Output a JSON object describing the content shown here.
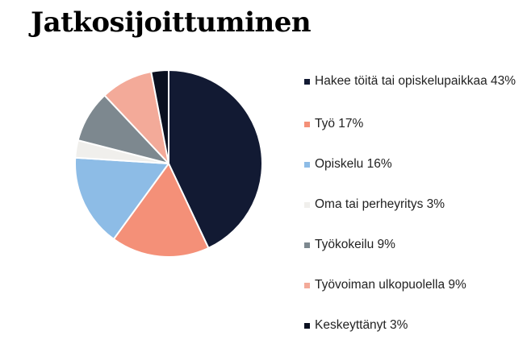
{
  "title": "Jatkosijoittuminen",
  "chart_data": {
    "type": "pie",
    "title": "Jatkosijoittuminen",
    "legend_position": "right",
    "slices": [
      {
        "label": "Hakee töitä tai opiskelupaikkaa",
        "legend_text": "Hakee töitä tai opiskelupaikkaa 43%",
        "value": 43,
        "color": "#121a33"
      },
      {
        "label": "Työ",
        "legend_text": "Työ 17%",
        "value": 17,
        "color": "#f49078"
      },
      {
        "label": "Opiskelu",
        "legend_text": "Opiskelu 16%",
        "value": 16,
        "color": "#8dbce6"
      },
      {
        "label": "Oma tai perheyritys",
        "legend_text": "Oma tai perheyritys 3%",
        "value": 3,
        "color": "#f0efec"
      },
      {
        "label": "Työkokeilu",
        "legend_text": "Työkokeilu 9%",
        "value": 9,
        "color": "#7d888f"
      },
      {
        "label": "Työvoiman ulkopuolella",
        "legend_text": "Työvoiman ulkopuolella 9%",
        "value": 9,
        "color": "#f3aa99"
      },
      {
        "label": "Keskeyttänyt",
        "legend_text": "Keskeyttänyt 3%",
        "value": 3,
        "color": "#0a1020"
      }
    ]
  }
}
